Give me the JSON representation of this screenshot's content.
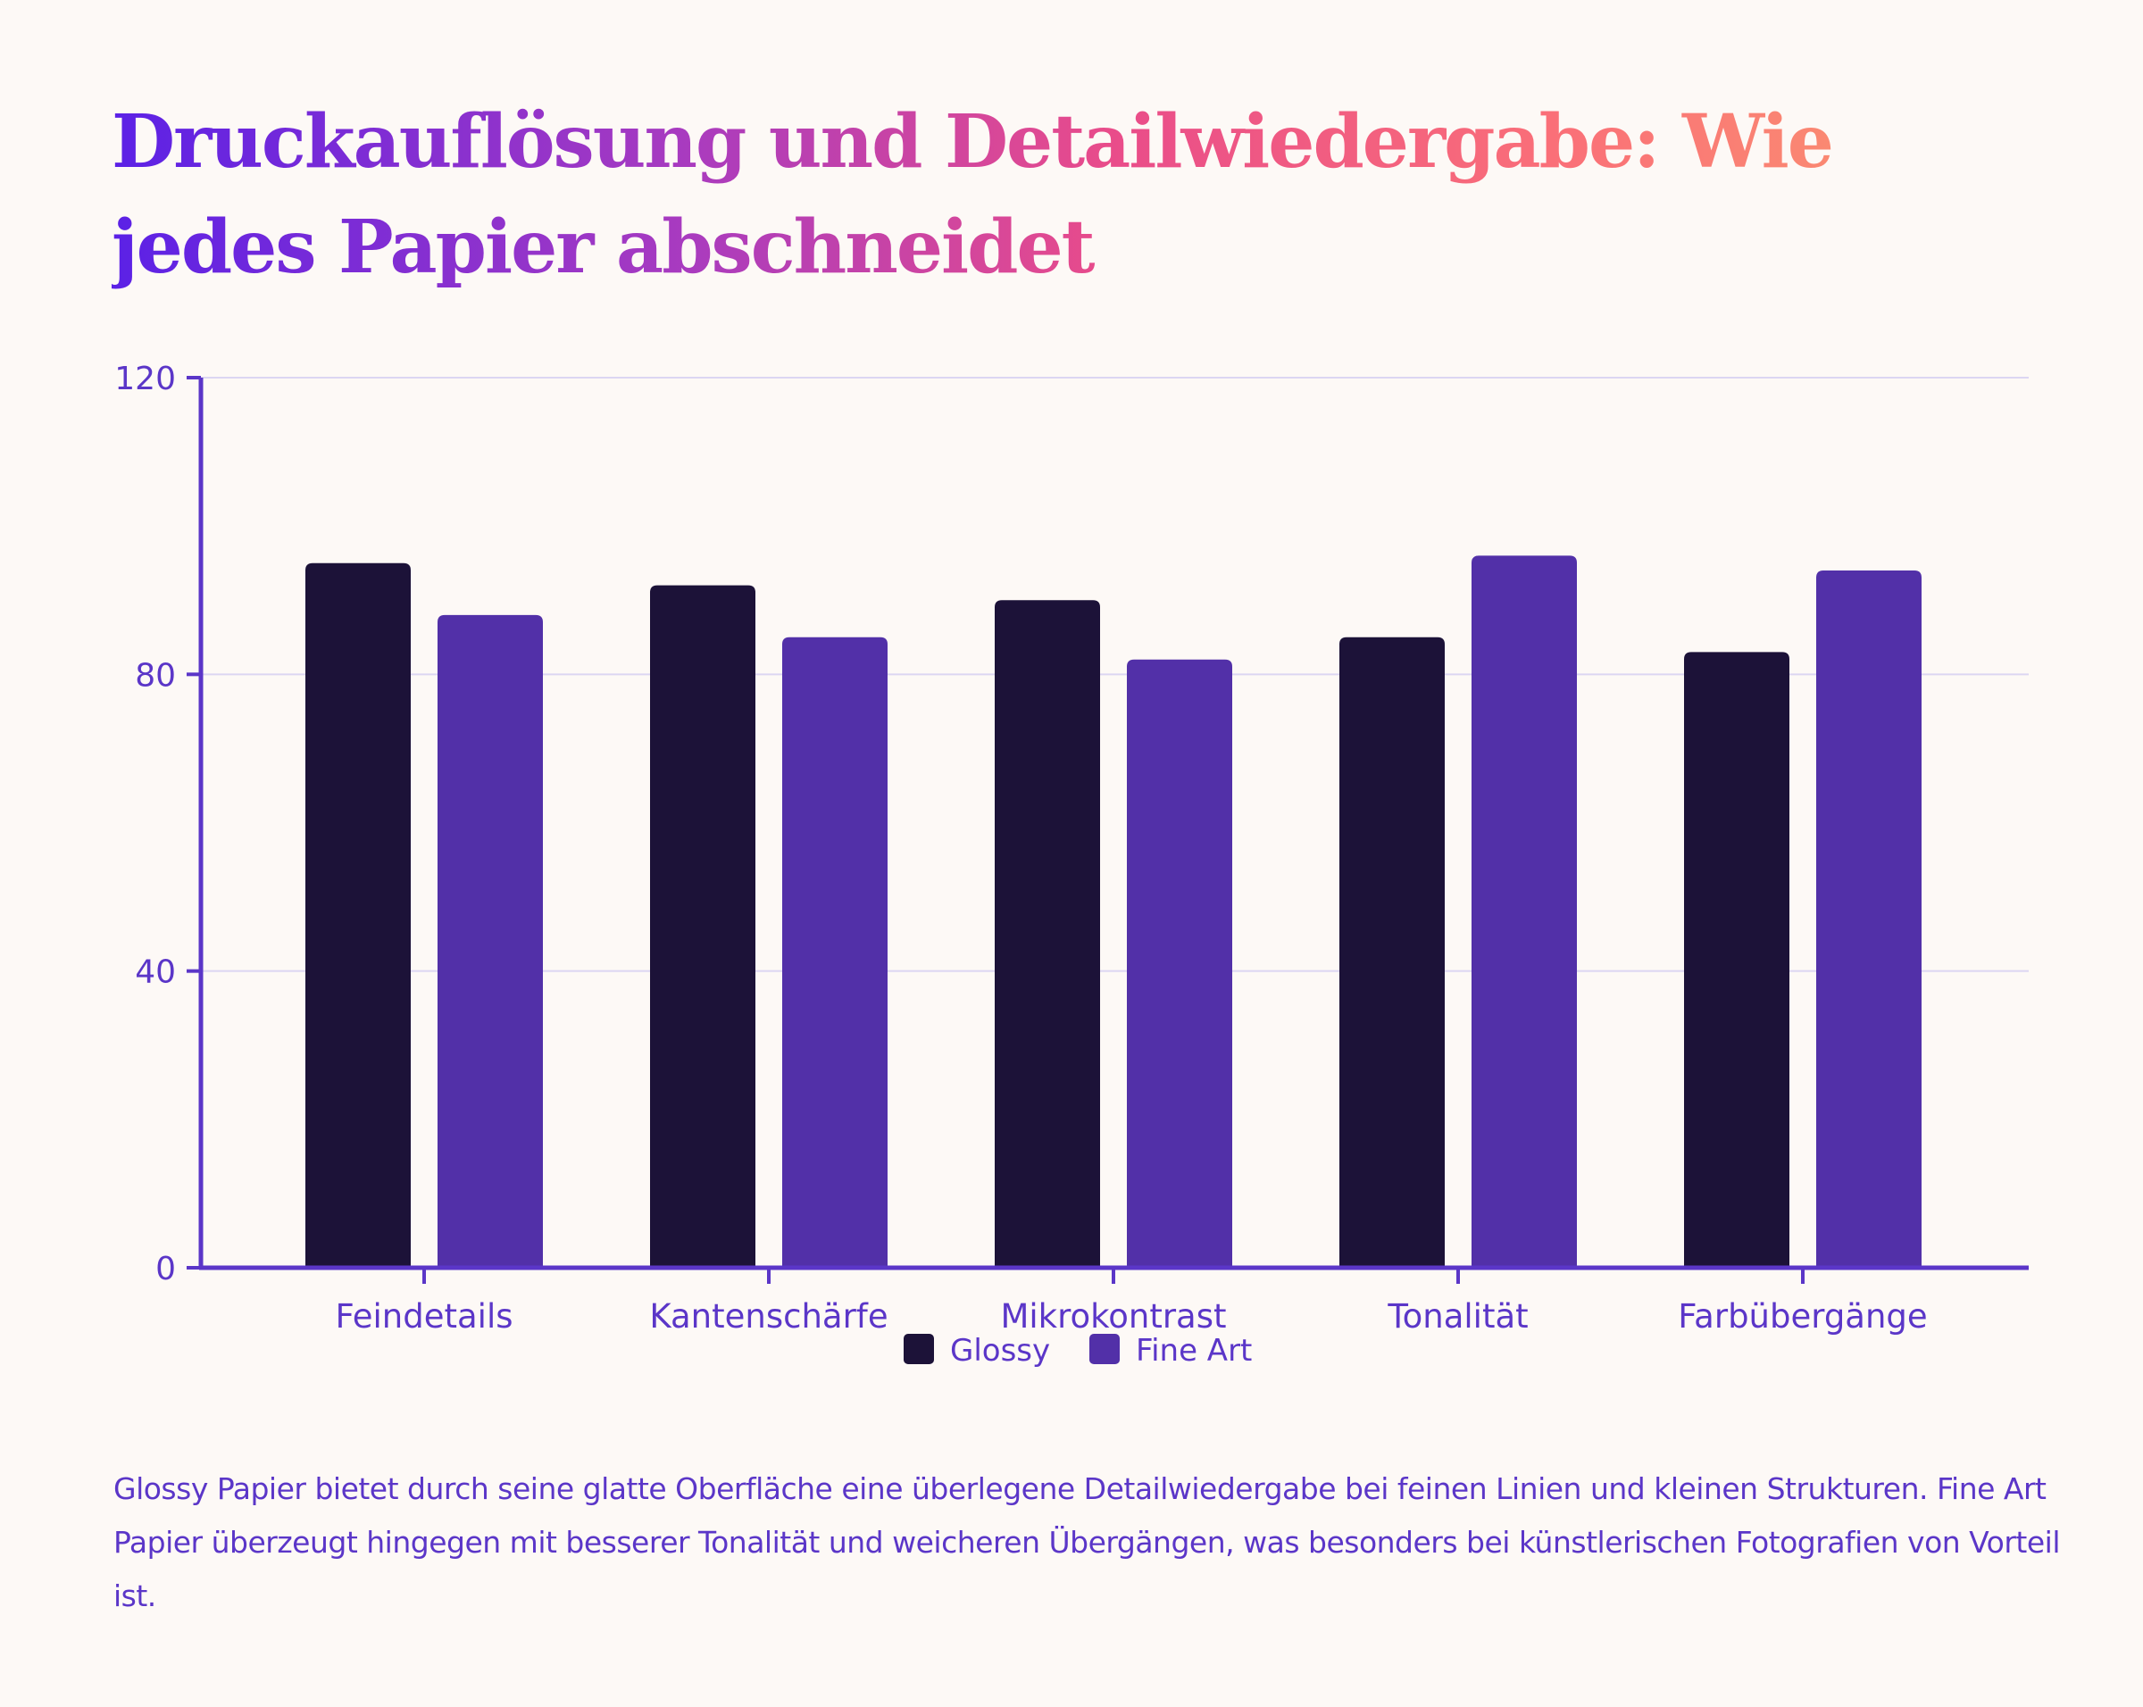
{
  "title": "Druckauflösung und Detailwiedergabe: Wie jedes Papier abschneidet",
  "caption": "Glossy Papier bietet durch seine glatte Oberfläche eine überlegene Detailwiedergabe bei feinen Linien und kleinen Strukturen. Fine Art Papier überzeugt hingegen mit besserer Tonalität und weicheren Übergängen, was besonders bei künstlerischen Fotografien von Vorteil ist.",
  "colors": {
    "axis": "#5b36c8",
    "grid": "#dcd6f2",
    "text": "#5b36c8"
  },
  "chart_data": {
    "type": "bar",
    "title": "Druckauflösung und Detailwiedergabe: Wie jedes Papier abschneidet",
    "xlabel": "",
    "ylabel": "",
    "ylim": [
      0,
      120
    ],
    "yticks": [
      0,
      40,
      80,
      120
    ],
    "grid": true,
    "legend_position": "bottom-center",
    "categories": [
      "Feindetails",
      "Kantenschärfe",
      "Mikrokontrast",
      "Tonalität",
      "Farbübergänge"
    ],
    "series": [
      {
        "name": "Glossy",
        "color": "#1c1238",
        "values": [
          95,
          92,
          90,
          85,
          83
        ]
      },
      {
        "name": "Fine Art",
        "color": "#5230a8",
        "values": [
          88,
          85,
          82,
          96,
          94
        ]
      }
    ]
  }
}
